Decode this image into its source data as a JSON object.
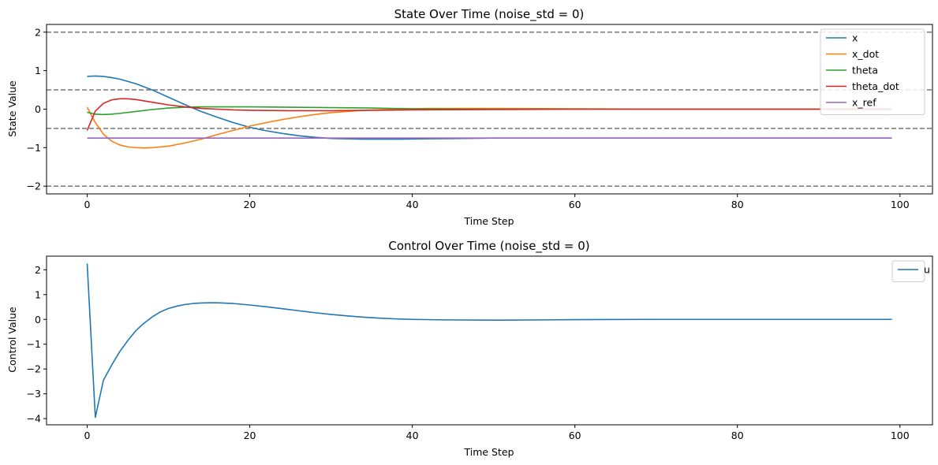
{
  "chart_data": [
    {
      "type": "line",
      "title": "State Over Time (noise_std = 0)",
      "xlabel": "Time Step",
      "ylabel": "State Value",
      "xlim": [
        -5,
        104
      ],
      "ylim": [
        -2.2,
        2.2
      ],
      "xticks": [
        0,
        20,
        40,
        60,
        80,
        100
      ],
      "yticks": [
        -2,
        -1,
        0,
        1,
        2
      ],
      "grid": false,
      "legend": "top-right",
      "hlines": [
        {
          "y": 2.0,
          "color": "#808080",
          "style": "dashed"
        },
        {
          "y": 0.5,
          "color": "#808080",
          "style": "dashed"
        },
        {
          "y": -0.5,
          "color": "#808080",
          "style": "dashed"
        },
        {
          "y": -2.0,
          "color": "#808080",
          "style": "dashed"
        }
      ],
      "series": [
        {
          "name": "x",
          "color": "#1f77b4",
          "x": [
            0,
            1,
            2,
            3,
            4,
            6,
            8,
            10,
            12,
            14,
            16,
            18,
            20,
            22,
            24,
            26,
            28,
            30,
            34,
            38,
            42,
            46,
            50,
            60,
            70,
            80,
            90,
            99
          ],
          "y": [
            0.85,
            0.86,
            0.85,
            0.82,
            0.78,
            0.66,
            0.5,
            0.31,
            0.12,
            -0.06,
            -0.21,
            -0.35,
            -0.47,
            -0.56,
            -0.63,
            -0.69,
            -0.73,
            -0.76,
            -0.78,
            -0.78,
            -0.77,
            -0.76,
            -0.75,
            -0.75,
            -0.75,
            -0.75,
            -0.75,
            -0.75
          ]
        },
        {
          "name": "x_dot",
          "color": "#ff7f0e",
          "x": [
            0,
            1,
            2,
            3,
            4,
            5,
            6,
            7,
            8,
            10,
            12,
            14,
            16,
            18,
            20,
            22,
            24,
            26,
            28,
            30,
            34,
            38,
            42,
            46,
            50,
            60,
            70,
            80,
            90,
            99
          ],
          "y": [
            0.05,
            -0.35,
            -0.65,
            -0.83,
            -0.93,
            -0.98,
            -1.0,
            -1.01,
            -1.0,
            -0.96,
            -0.88,
            -0.78,
            -0.66,
            -0.55,
            -0.44,
            -0.35,
            -0.27,
            -0.2,
            -0.14,
            -0.09,
            -0.03,
            0.0,
            0.02,
            0.02,
            0.02,
            0.01,
            0.0,
            0.0,
            0.0,
            0.0
          ]
        },
        {
          "name": "theta",
          "color": "#2ca02c",
          "x": [
            0,
            1,
            2,
            3,
            4,
            6,
            8,
            10,
            12,
            14,
            16,
            18,
            20,
            25,
            30,
            35,
            40,
            50,
            60,
            70,
            80,
            90,
            99
          ],
          "y": [
            -0.08,
            -0.13,
            -0.14,
            -0.13,
            -0.11,
            -0.06,
            -0.01,
            0.03,
            0.05,
            0.06,
            0.06,
            0.06,
            0.06,
            0.05,
            0.04,
            0.03,
            0.01,
            0.0,
            0.0,
            0.0,
            0.0,
            0.0,
            0.0
          ]
        },
        {
          "name": "theta_dot",
          "color": "#d62728",
          "x": [
            0,
            1,
            2,
            3,
            4,
            5,
            6,
            8,
            10,
            12,
            14,
            16,
            18,
            20,
            25,
            30,
            35,
            40,
            50,
            60,
            70,
            80,
            90,
            99
          ],
          "y": [
            -0.55,
            -0.05,
            0.15,
            0.24,
            0.27,
            0.27,
            0.25,
            0.18,
            0.11,
            0.06,
            0.02,
            0.0,
            -0.02,
            -0.03,
            -0.04,
            -0.04,
            -0.03,
            -0.02,
            -0.01,
            0.0,
            0.0,
            0.0,
            0.0,
            0.0
          ]
        },
        {
          "name": "x_ref",
          "color": "#9467bd",
          "x": [
            0,
            99
          ],
          "y": [
            -0.75,
            -0.75
          ]
        }
      ]
    },
    {
      "type": "line",
      "title": "Control Over Time (noise_std = 0)",
      "xlabel": "Time Step",
      "ylabel": "Control Value",
      "xlim": [
        -5,
        104
      ],
      "ylim": [
        -4.25,
        2.55
      ],
      "xticks": [
        0,
        20,
        40,
        60,
        80,
        100
      ],
      "yticks": [
        -4,
        -3,
        -2,
        -1,
        0,
        1,
        2
      ],
      "grid": false,
      "legend": "top-right",
      "series": [
        {
          "name": "u",
          "color": "#1f77b4",
          "x": [
            0,
            1,
            2,
            3,
            4,
            5,
            6,
            7,
            8,
            9,
            10,
            11,
            12,
            13,
            14,
            15,
            16,
            18,
            20,
            22,
            24,
            26,
            28,
            30,
            32,
            34,
            36,
            38,
            40,
            44,
            50,
            56,
            60,
            70,
            80,
            90,
            99
          ],
          "y": [
            2.25,
            -3.95,
            -2.45,
            -1.85,
            -1.3,
            -0.85,
            -0.45,
            -0.15,
            0.1,
            0.3,
            0.44,
            0.53,
            0.6,
            0.64,
            0.66,
            0.67,
            0.67,
            0.64,
            0.58,
            0.51,
            0.43,
            0.35,
            0.27,
            0.2,
            0.14,
            0.09,
            0.05,
            0.02,
            0.0,
            -0.02,
            -0.03,
            -0.02,
            -0.01,
            0.0,
            0.0,
            0.0,
            0.0
          ]
        }
      ]
    }
  ]
}
